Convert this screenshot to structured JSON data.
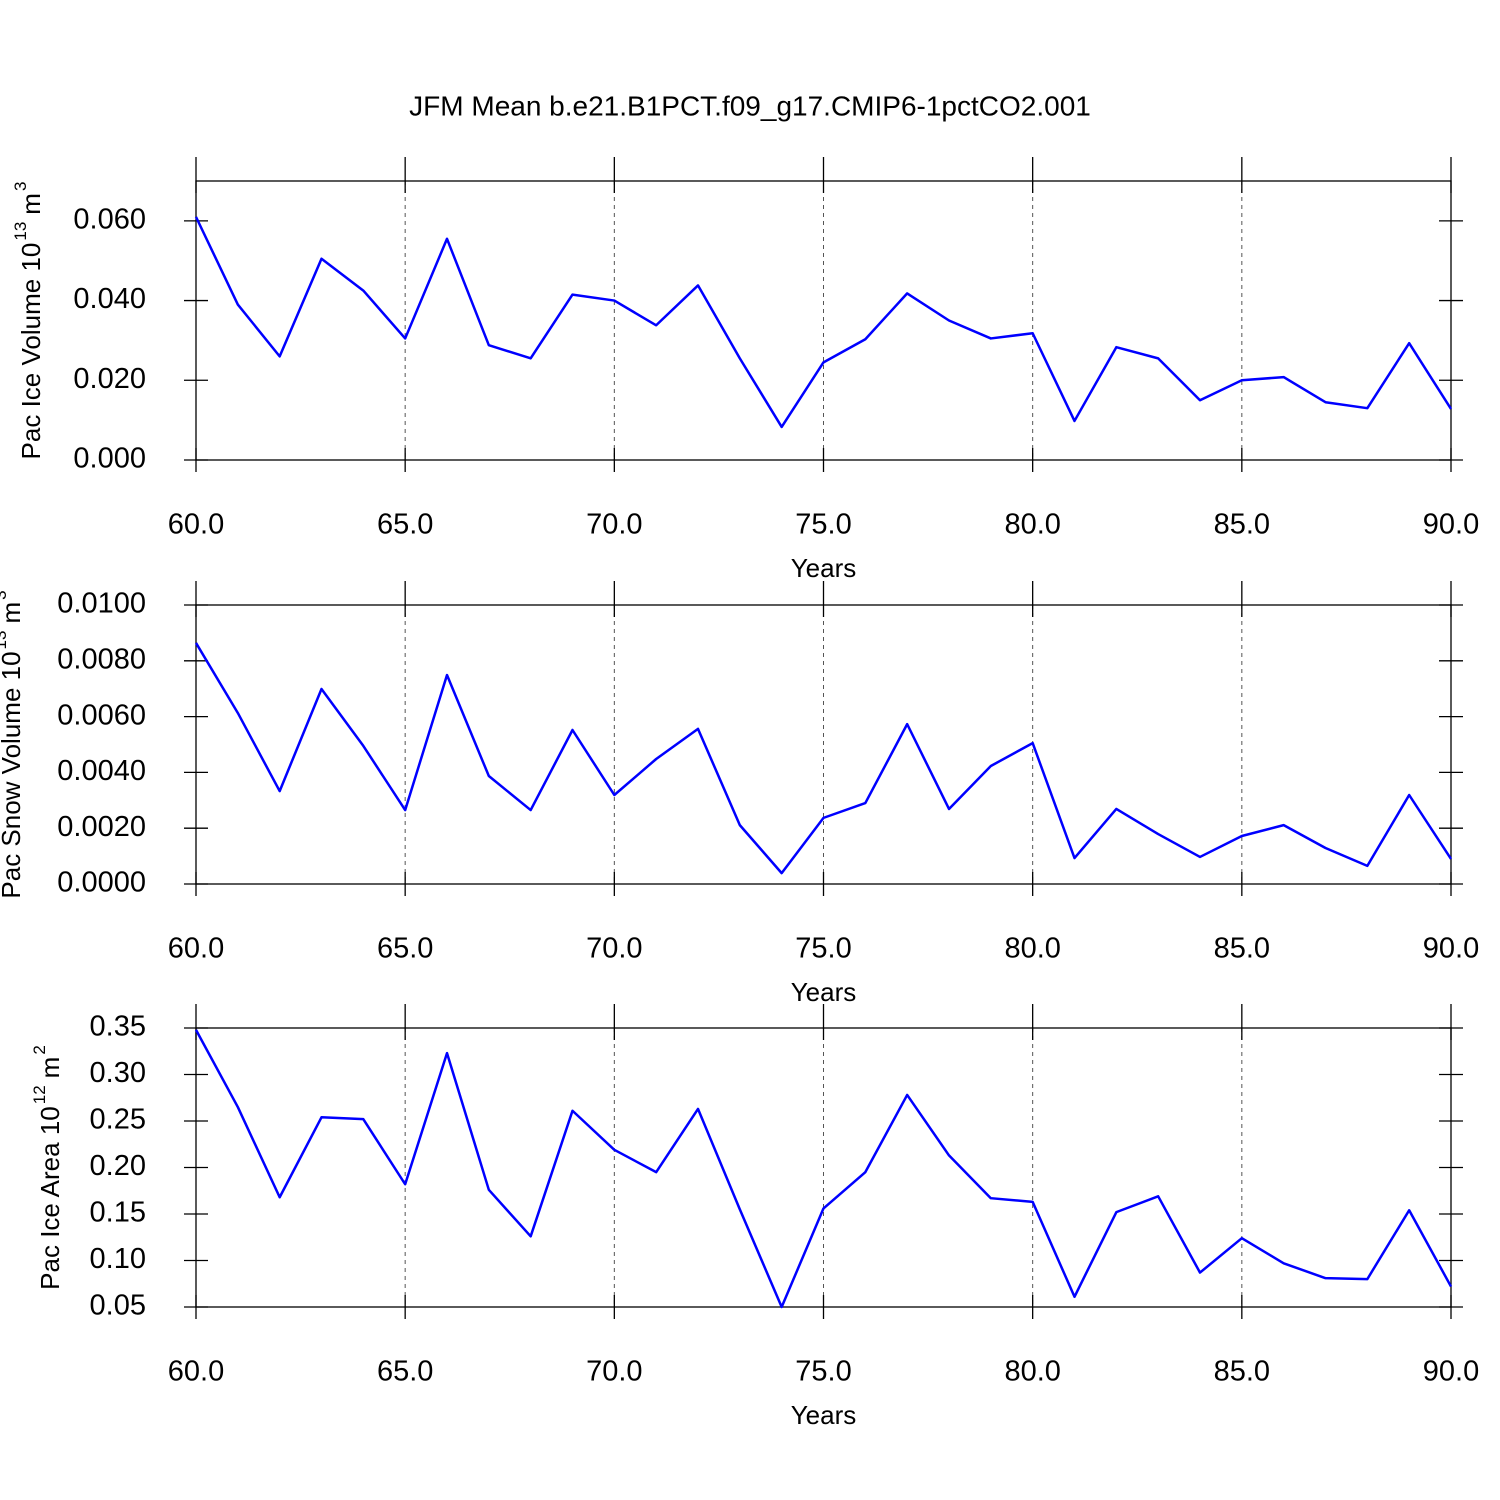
{
  "chart_data": [
    {
      "type": "line",
      "title": "JFM Mean b.e21.B1PCT.f09_g17.CMIP6-1pctCO2.001",
      "xlabel": "Years",
      "ylabel": [
        "Pac Ice Volume 10",
        "13",
        "m",
        "3"
      ],
      "color": "#0000ff",
      "xgrid": true,
      "x": [
        60,
        61,
        62,
        63,
        64,
        65,
        66,
        67,
        68,
        69,
        70,
        71,
        72,
        73,
        74,
        75,
        76,
        77,
        78,
        79,
        80,
        81,
        82,
        83,
        84,
        85,
        86,
        87,
        88,
        89,
        90
      ],
      "values": [
        0.061,
        0.039,
        0.026,
        0.0505,
        0.0425,
        0.0305,
        0.0555,
        0.0288,
        0.0255,
        0.0415,
        0.04,
        0.0338,
        0.0438,
        0.0255,
        0.0083,
        0.0245,
        0.0303,
        0.0418,
        0.035,
        0.0305,
        0.0318,
        0.0098,
        0.0283,
        0.0255,
        0.015,
        0.02,
        0.0208,
        0.0145,
        0.013,
        0.0293,
        0.0128
      ],
      "xlim": [
        60,
        90
      ],
      "xticks": [
        {
          "value": 60,
          "label": "60.0"
        },
        {
          "value": 65,
          "label": "65.0"
        },
        {
          "value": 70,
          "label": "70.0"
        },
        {
          "value": 75,
          "label": "75.0"
        },
        {
          "value": 80,
          "label": "80.0"
        },
        {
          "value": 85,
          "label": "85.0"
        },
        {
          "value": 90,
          "label": "90.0"
        }
      ],
      "ylim": [
        0,
        0.07
      ],
      "yticks": [
        {
          "value": 0,
          "label": "0.000"
        },
        {
          "value": 0.02,
          "label": "0.020"
        },
        {
          "value": 0.04,
          "label": "0.040"
        },
        {
          "value": 0.06,
          "label": "0.060"
        }
      ]
    },
    {
      "type": "line",
      "xlabel": "Years",
      "ylabel": [
        "Pac Snow Volume 10",
        "13",
        "m",
        "3"
      ],
      "color": "#0000ff",
      "xgrid": true,
      "x": [
        60,
        61,
        62,
        63,
        64,
        65,
        66,
        67,
        68,
        69,
        70,
        71,
        72,
        73,
        74,
        75,
        76,
        77,
        78,
        79,
        80,
        81,
        82,
        83,
        84,
        85,
        86,
        87,
        88,
        89,
        90
      ],
      "values": [
        0.00864,
        0.00613,
        0.00333,
        0.00699,
        0.00495,
        0.00265,
        0.00749,
        0.00387,
        0.00265,
        0.00552,
        0.00319,
        0.00448,
        0.00556,
        0.00211,
        0.00039,
        0.00237,
        0.0029,
        0.00573,
        0.00269,
        0.00423,
        0.00505,
        0.00093,
        0.00269,
        0.00179,
        0.00097,
        0.00172,
        0.00211,
        0.00129,
        0.00065,
        0.00319,
        0.0009
      ],
      "xlim": [
        60,
        90
      ],
      "xticks": [
        {
          "value": 60,
          "label": "60.0"
        },
        {
          "value": 65,
          "label": "65.0"
        },
        {
          "value": 70,
          "label": "70.0"
        },
        {
          "value": 75,
          "label": "75.0"
        },
        {
          "value": 80,
          "label": "80.0"
        },
        {
          "value": 85,
          "label": "85.0"
        },
        {
          "value": 90,
          "label": "90.0"
        }
      ],
      "ylim": [
        0,
        0.01
      ],
      "yticks": [
        {
          "value": 0,
          "label": "0.0000"
        },
        {
          "value": 0.002,
          "label": "0.0020"
        },
        {
          "value": 0.004,
          "label": "0.0040"
        },
        {
          "value": 0.006,
          "label": "0.0060"
        },
        {
          "value": 0.008,
          "label": "0.0080"
        },
        {
          "value": 0.01,
          "label": "0.0100"
        }
      ]
    },
    {
      "type": "line",
      "xlabel": "Years",
      "ylabel": [
        "Pac Ice Area 10",
        "12",
        "m",
        "2"
      ],
      "color": "#0000ff",
      "xgrid": true,
      "x": [
        60,
        61,
        62,
        63,
        64,
        65,
        66,
        67,
        68,
        69,
        70,
        71,
        72,
        73,
        74,
        75,
        76,
        77,
        78,
        79,
        80,
        81,
        82,
        83,
        84,
        85,
        86,
        87,
        88,
        89,
        90
      ],
      "values": [
        0.348,
        0.265,
        0.168,
        0.254,
        0.252,
        0.182,
        0.323,
        0.176,
        0.126,
        0.261,
        0.219,
        0.195,
        0.263,
        0.155,
        0.05,
        0.156,
        0.195,
        0.278,
        0.213,
        0.167,
        0.163,
        0.061,
        0.152,
        0.169,
        0.087,
        0.124,
        0.097,
        0.081,
        0.08,
        0.154,
        0.072
      ],
      "xlim": [
        60,
        90
      ],
      "xticks": [
        {
          "value": 60,
          "label": "60.0"
        },
        {
          "value": 65,
          "label": "65.0"
        },
        {
          "value": 70,
          "label": "70.0"
        },
        {
          "value": 75,
          "label": "75.0"
        },
        {
          "value": 80,
          "label": "80.0"
        },
        {
          "value": 85,
          "label": "85.0"
        },
        {
          "value": 90,
          "label": "90.0"
        }
      ],
      "ylim": [
        0.05,
        0.35
      ],
      "yticks": [
        {
          "value": 0.05,
          "label": "0.05"
        },
        {
          "value": 0.1,
          "label": "0.10"
        },
        {
          "value": 0.15,
          "label": "0.15"
        },
        {
          "value": 0.2,
          "label": "0.20"
        },
        {
          "value": 0.25,
          "label": "0.25"
        },
        {
          "value": 0.3,
          "label": "0.30"
        },
        {
          "value": 0.35,
          "label": "0.35"
        }
      ]
    }
  ]
}
